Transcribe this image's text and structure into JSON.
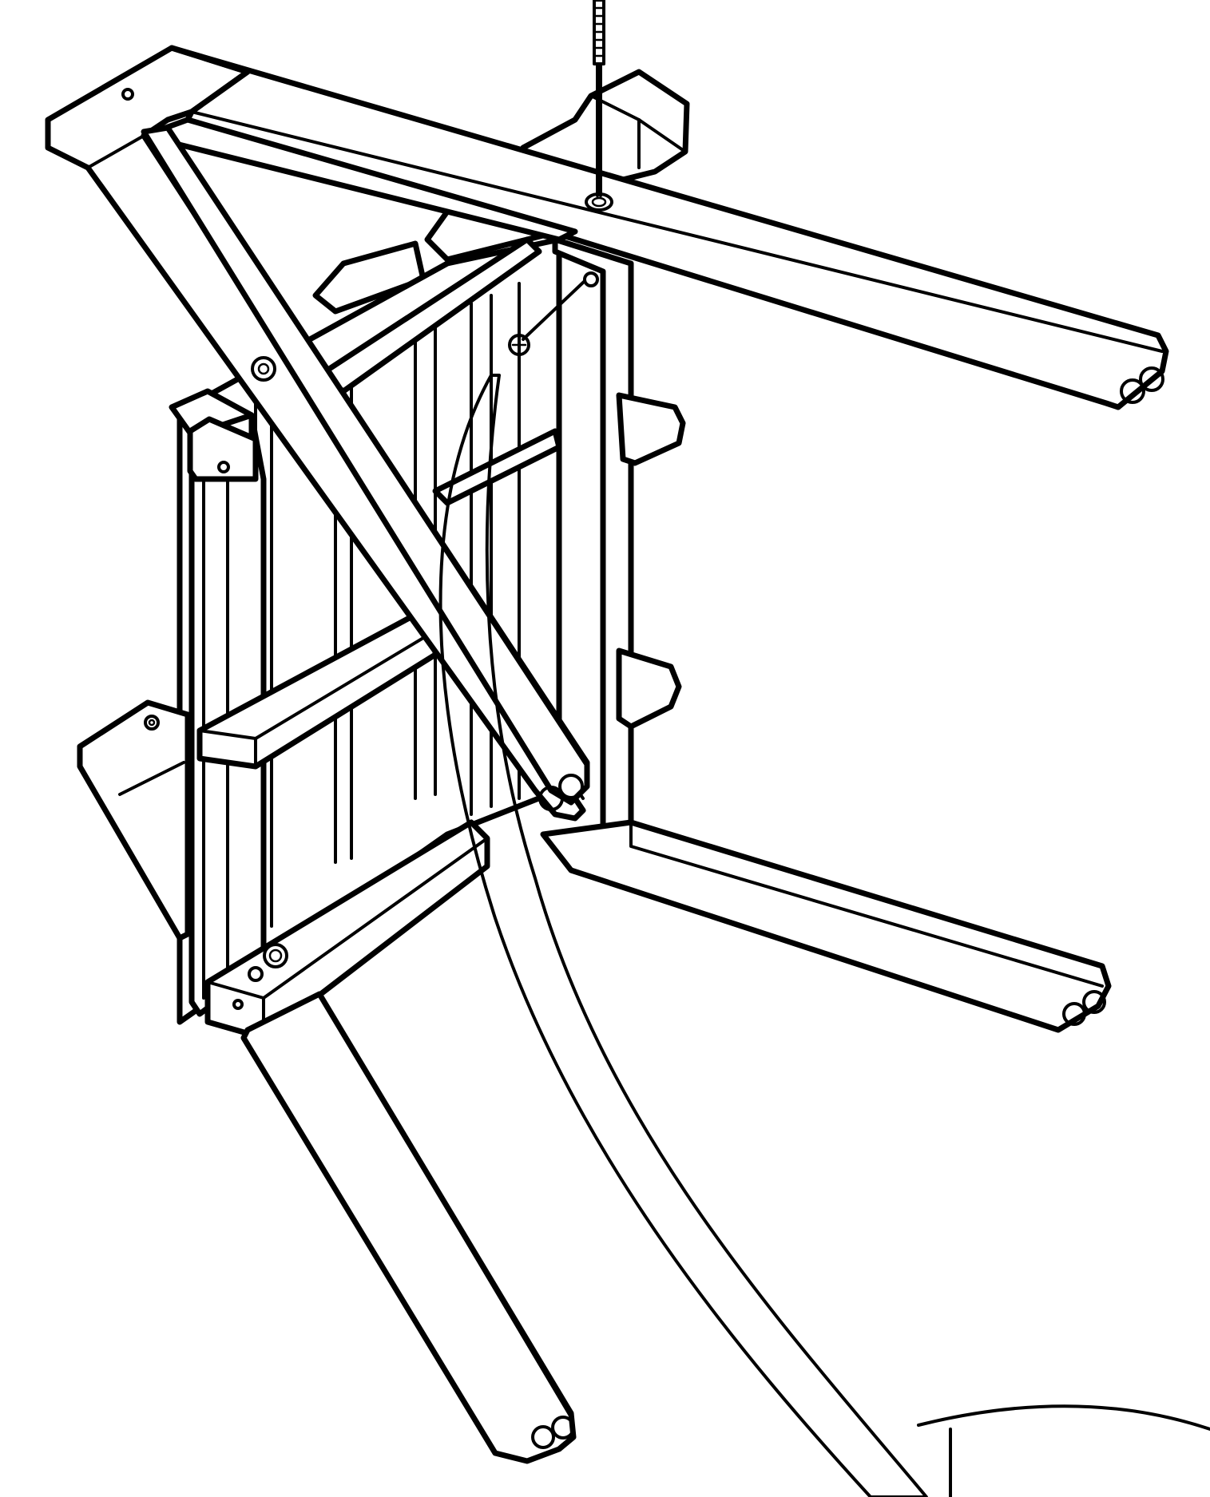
{
  "diagram": {
    "kind": "assembly-instruction-line-drawing",
    "colors": {
      "line": "#000000",
      "background": "#ffffff"
    },
    "icons": [
      "bolt-icon",
      "dowel-icon",
      "screw-hole-icon",
      "cam-lock-icon",
      "curved-arm-icon"
    ]
  }
}
